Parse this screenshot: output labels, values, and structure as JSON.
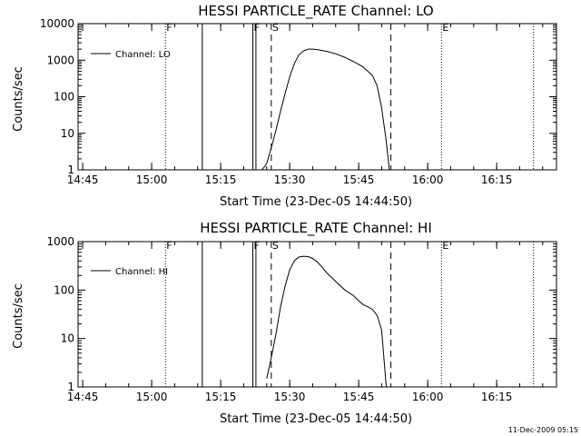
{
  "footer": {
    "timestamp": "11-Dec-2009 05:15"
  },
  "marker_labels": {
    "flare_start": "F",
    "saa_start": "S",
    "eclipse": "E"
  },
  "chart_data": [
    {
      "type": "line",
      "title": "HESSI PARTICLE_RATE Channel: LO",
      "xlabel": "Start Time (23-Dec-05 14:44:50)",
      "ylabel": "Counts/sec",
      "y_scale": "log",
      "ylim": [
        1,
        10000
      ],
      "xlim": [
        "14:44",
        "16:28"
      ],
      "x_ticks": [
        "14:45",
        "15:00",
        "15:15",
        "15:30",
        "15:45",
        "16:00",
        "16:15"
      ],
      "y_ticks": [
        "1",
        "10",
        "100",
        "1000",
        "10000"
      ],
      "grid": false,
      "legend": {
        "label": "Channel: LO",
        "position": "top-left"
      },
      "series": [
        {
          "name": "Channel: LO",
          "x": [
            "15:24",
            "15:25",
            "15:26",
            "15:27",
            "15:28",
            "15:29",
            "15:30",
            "15:31",
            "15:32",
            "15:33",
            "15:34",
            "15:35",
            "15:36",
            "15:37",
            "15:38",
            "15:40",
            "15:42",
            "15:44",
            "15:46",
            "15:48",
            "15:49",
            "15:50",
            "15:51",
            "15:51:40"
          ],
          "y": [
            1,
            1.5,
            4,
            12,
            40,
            120,
            350,
            800,
            1400,
            1800,
            2000,
            2000,
            1950,
            1850,
            1750,
            1500,
            1200,
            900,
            650,
            380,
            200,
            50,
            6,
            1
          ]
        }
      ],
      "vertical_markers": [
        {
          "time": "15:03",
          "style": "dotted",
          "label": "F"
        },
        {
          "time": "15:11",
          "style": "solid"
        },
        {
          "time": "15:22",
          "style": "solid",
          "label": "F"
        },
        {
          "time": "15:22:40",
          "style": "solid"
        },
        {
          "time": "15:26",
          "style": "dashed",
          "label": "S"
        },
        {
          "time": "15:52",
          "style": "dashed"
        },
        {
          "time": "16:03",
          "style": "dotted",
          "label": "E"
        },
        {
          "time": "16:23",
          "style": "dotted"
        }
      ]
    },
    {
      "type": "line",
      "title": "HESSI PARTICLE_RATE Channel: HI",
      "xlabel": "Start Time (23-Dec-05 14:44:50)",
      "ylabel": "Counts/sec",
      "y_scale": "log",
      "ylim": [
        1,
        1000
      ],
      "xlim": [
        "14:44",
        "16:28"
      ],
      "x_ticks": [
        "14:45",
        "15:00",
        "15:15",
        "15:30",
        "15:45",
        "16:00",
        "16:15"
      ],
      "y_ticks": [
        "1",
        "10",
        "100",
        "1000"
      ],
      "grid": false,
      "legend": {
        "label": "Channel: HI",
        "position": "top-left"
      },
      "series": [
        {
          "name": "Channel: HI",
          "x": [
            "15:25",
            "15:26",
            "15:27",
            "15:28",
            "15:29",
            "15:30",
            "15:31",
            "15:32",
            "15:33",
            "15:34",
            "15:35",
            "15:36",
            "15:37",
            "15:38",
            "15:40",
            "15:42",
            "15:44",
            "15:45",
            "15:46",
            "15:47",
            "15:48",
            "15:49",
            "15:50",
            "15:51"
          ],
          "y": [
            1.5,
            4,
            12,
            45,
            120,
            260,
            400,
            480,
            500,
            490,
            450,
            380,
            300,
            230,
            150,
            100,
            75,
            60,
            50,
            45,
            40,
            30,
            15,
            1
          ]
        }
      ],
      "vertical_markers": [
        {
          "time": "15:03",
          "style": "dotted",
          "label": "F"
        },
        {
          "time": "15:11",
          "style": "solid"
        },
        {
          "time": "15:22",
          "style": "solid",
          "label": "F"
        },
        {
          "time": "15:22:40",
          "style": "solid"
        },
        {
          "time": "15:26",
          "style": "dashed",
          "label": "S"
        },
        {
          "time": "15:52",
          "style": "dashed"
        },
        {
          "time": "16:03",
          "style": "dotted",
          "label": "E"
        },
        {
          "time": "16:23",
          "style": "dotted"
        }
      ]
    }
  ]
}
